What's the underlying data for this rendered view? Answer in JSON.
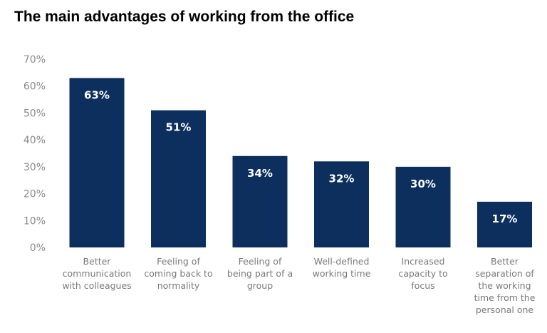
{
  "title": "The main advantages of working from the office",
  "chart_data": {
    "type": "bar",
    "title": "The main advantages of working from the office",
    "xlabel": "",
    "ylabel": "",
    "ylim": [
      0,
      70
    ],
    "yticks": [
      "0%",
      "10%",
      "20%",
      "30%",
      "40%",
      "50%",
      "60%",
      "70%"
    ],
    "categories": [
      [
        "Better",
        "communication",
        "with colleagues"
      ],
      [
        "Feeling of",
        "coming back to",
        "normality"
      ],
      [
        "Feeling of",
        "being part of a",
        "group"
      ],
      [
        "Well-defined",
        "working time"
      ],
      [
        "Increased",
        "capacity to",
        "focus"
      ],
      [
        "Better",
        "separation of",
        "the working",
        "time from the",
        "personal one"
      ]
    ],
    "values": [
      63,
      51,
      34,
      32,
      30,
      17
    ],
    "value_labels": [
      "63%",
      "51%",
      "34%",
      "32%",
      "30%",
      "17%"
    ],
    "bar_color": "#0d2f5e",
    "grid": false,
    "legend": "none"
  }
}
